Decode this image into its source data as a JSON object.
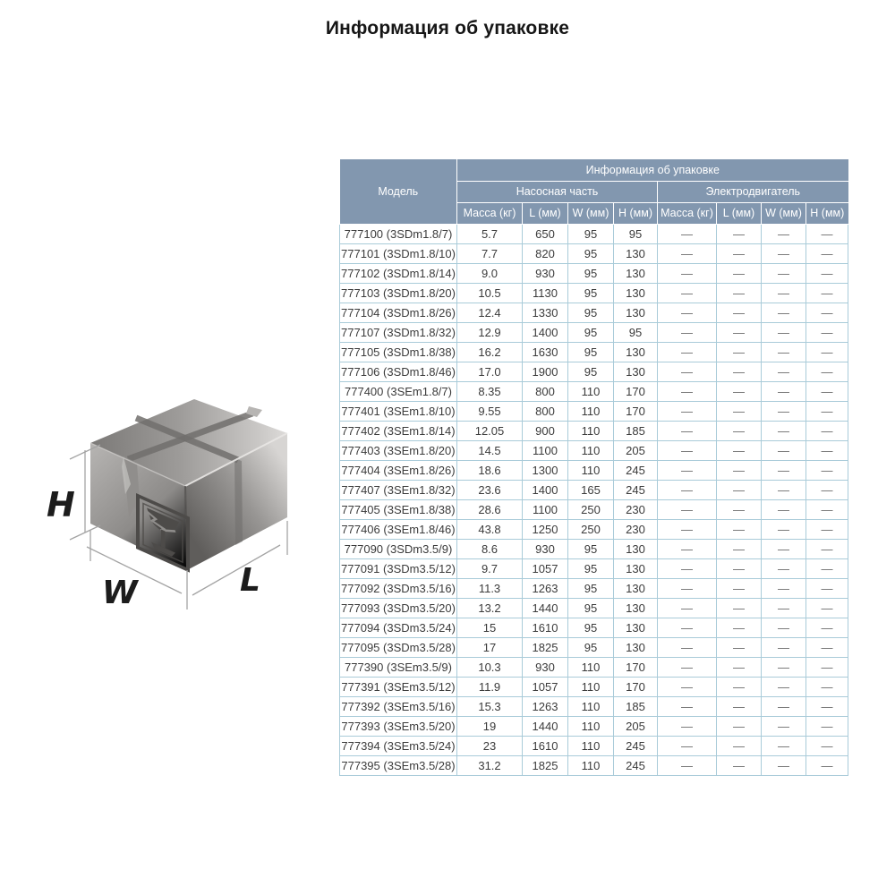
{
  "page_title": "Информация об упаковке",
  "colors": {
    "header_bg": "#8297af",
    "header_text": "#ffffff",
    "row_border": "#a9cbd9",
    "body_text": "#3b3b3b",
    "dash_text": "#6a6a6a",
    "title_text": "#161616"
  },
  "diagram": {
    "height_label": "H",
    "width_label": "W",
    "length_label": "L",
    "icons": [
      "package-box",
      "fragile-glass-icon"
    ]
  },
  "table": {
    "model_header": "Модель",
    "group_title": "Информация об упаковке",
    "subgroups": [
      {
        "label": "Насосная часть"
      },
      {
        "label": "Электродвигатель"
      }
    ],
    "columns": [
      "Масса (кг)",
      "L (мм)",
      "W (мм)",
      "H (мм)",
      "Масса (кг)",
      "L (мм)",
      "W (мм)",
      "H (мм)"
    ],
    "rows": [
      [
        "777100 (3SDm1.8/7)",
        "5.7",
        "650",
        "95",
        "95",
        "—",
        "—",
        "—",
        "—"
      ],
      [
        "777101 (3SDm1.8/10)",
        "7.7",
        "820",
        "95",
        "130",
        "—",
        "—",
        "—",
        "—"
      ],
      [
        "777102 (3SDm1.8/14)",
        "9.0",
        "930",
        "95",
        "130",
        "—",
        "—",
        "—",
        "—"
      ],
      [
        "777103 (3SDm1.8/20)",
        "10.5",
        "1130",
        "95",
        "130",
        "—",
        "—",
        "—",
        "—"
      ],
      [
        "777104 (3SDm1.8/26)",
        "12.4",
        "1330",
        "95",
        "130",
        "—",
        "—",
        "—",
        "—"
      ],
      [
        "777107 (3SDm1.8/32)",
        "12.9",
        "1400",
        "95",
        "95",
        "—",
        "—",
        "—",
        "—"
      ],
      [
        "777105 (3SDm1.8/38)",
        "16.2",
        "1630",
        "95",
        "130",
        "—",
        "—",
        "—",
        "—"
      ],
      [
        "777106 (3SDm1.8/46)",
        "17.0",
        "1900",
        "95",
        "130",
        "—",
        "—",
        "—",
        "—"
      ],
      [
        "777400 (3SEm1.8/7)",
        "8.35",
        "800",
        "110",
        "170",
        "—",
        "—",
        "—",
        "—"
      ],
      [
        "777401 (3SEm1.8/10)",
        "9.55",
        "800",
        "110",
        "170",
        "—",
        "—",
        "—",
        "—"
      ],
      [
        "777402 (3SEm1.8/14)",
        "12.05",
        "900",
        "110",
        "185",
        "—",
        "—",
        "—",
        "—"
      ],
      [
        "777403 (3SEm1.8/20)",
        "14.5",
        "1100",
        "110",
        "205",
        "—",
        "—",
        "—",
        "—"
      ],
      [
        "777404 (3SEm1.8/26)",
        "18.6",
        "1300",
        "110",
        "245",
        "—",
        "—",
        "—",
        "—"
      ],
      [
        "777407 (3SEm1.8/32)",
        "23.6",
        "1400",
        "165",
        "245",
        "—",
        "—",
        "—",
        "—"
      ],
      [
        "777405 (3SEm1.8/38)",
        "28.6",
        "1100",
        "250",
        "230",
        "—",
        "—",
        "—",
        "—"
      ],
      [
        "777406 (3SEm1.8/46)",
        "43.8",
        "1250",
        "250",
        "230",
        "—",
        "—",
        "—",
        "—"
      ],
      [
        "777090 (3SDm3.5/9)",
        "8.6",
        "930",
        "95",
        "130",
        "—",
        "—",
        "—",
        "—"
      ],
      [
        "777091 (3SDm3.5/12)",
        "9.7",
        "1057",
        "95",
        "130",
        "—",
        "—",
        "—",
        "—"
      ],
      [
        "777092 (3SDm3.5/16)",
        "11.3",
        "1263",
        "95",
        "130",
        "—",
        "—",
        "—",
        "—"
      ],
      [
        "777093 (3SDm3.5/20)",
        "13.2",
        "1440",
        "95",
        "130",
        "—",
        "—",
        "—",
        "—"
      ],
      [
        "777094 (3SDm3.5/24)",
        "15",
        "1610",
        "95",
        "130",
        "—",
        "—",
        "—",
        "—"
      ],
      [
        "777095 (3SDm3.5/28)",
        "17",
        "1825",
        "95",
        "130",
        "—",
        "—",
        "—",
        "—"
      ],
      [
        "777390 (3SEm3.5/9)",
        "10.3",
        "930",
        "110",
        "170",
        "—",
        "—",
        "—",
        "—"
      ],
      [
        "777391 (3SEm3.5/12)",
        "11.9",
        "1057",
        "110",
        "170",
        "—",
        "—",
        "—",
        "—"
      ],
      [
        "777392 (3SEm3.5/16)",
        "15.3",
        "1263",
        "110",
        "185",
        "—",
        "—",
        "—",
        "—"
      ],
      [
        "777393 (3SEm3.5/20)",
        "19",
        "1440",
        "110",
        "205",
        "—",
        "—",
        "—",
        "—"
      ],
      [
        "777394 (3SEm3.5/24)",
        "23",
        "1610",
        "110",
        "245",
        "—",
        "—",
        "—",
        "—"
      ],
      [
        "777395 (3SEm3.5/28)",
        "31.2",
        "1825",
        "110",
        "245",
        "—",
        "—",
        "—",
        "—"
      ]
    ]
  }
}
